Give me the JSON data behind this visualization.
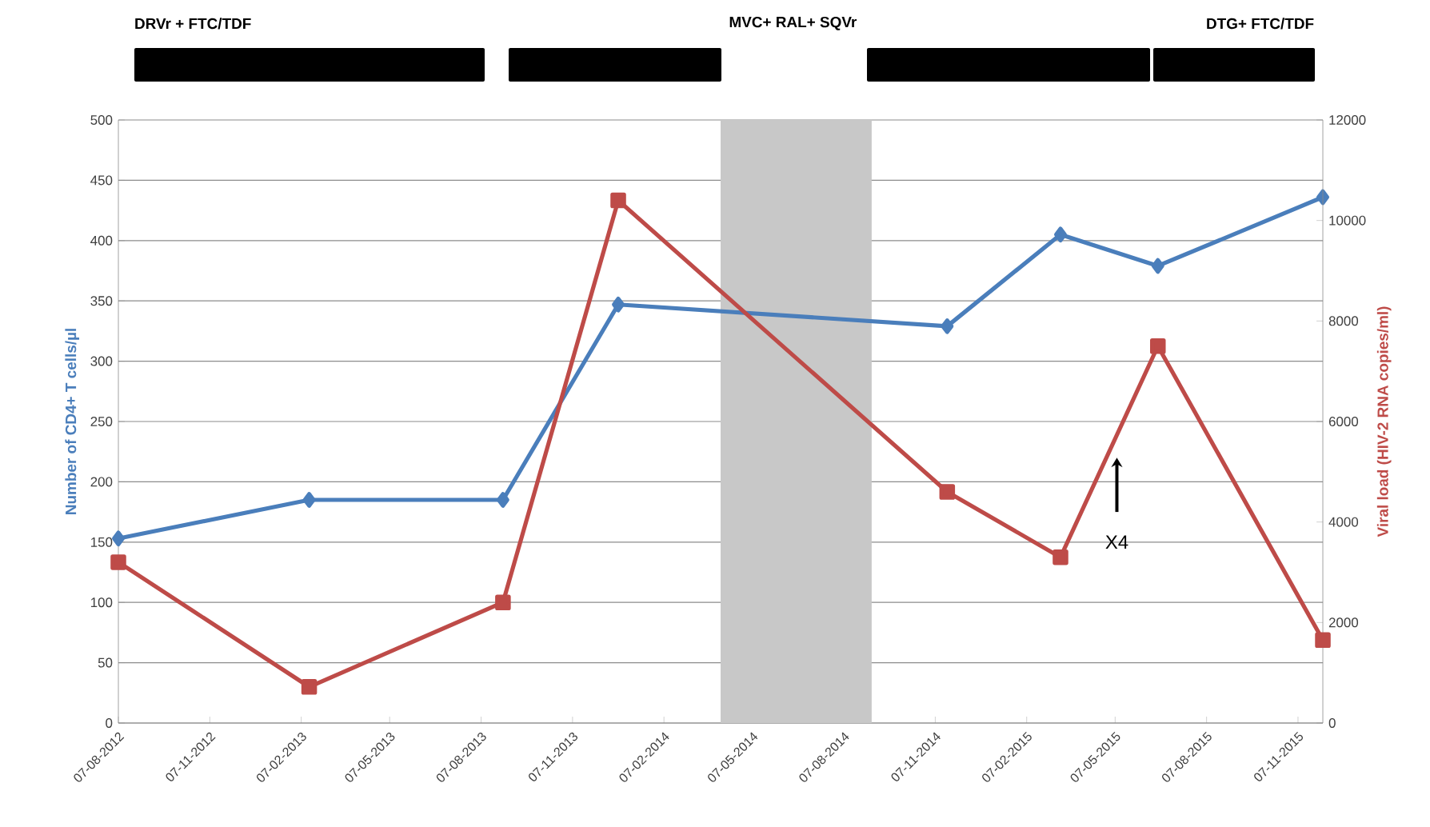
{
  "chart_data": {
    "type": "line",
    "ylabel": "Number of CD4+ T cells/µl",
    "y2label": "Viral load (HIV-2 RNA copies/ml)",
    "x": [
      "2012-08-07",
      "2013-02-15",
      "2013-08-29",
      "2013-12-23",
      "2014-11-19",
      "2015-03-13",
      "2015-06-19",
      "2015-12-02"
    ],
    "series": [
      {
        "color": "#4a7ebb",
        "marker": "diamond",
        "values": [
          153,
          185,
          185,
          347,
          329,
          405,
          379,
          436
        ]
      },
      {
        "color": "#be4b48",
        "marker": "square",
        "axis": "y2",
        "values": [
          3200,
          720,
          2400,
          10400,
          4600,
          3300,
          7500,
          1650
        ]
      }
    ],
    "xlim": [
      "2012-08-07",
      "2015-12-02"
    ],
    "xticks": [
      {
        "value": "2012-08-07",
        "label": "07-08-2012"
      },
      {
        "value": "2012-11-07",
        "label": "07-11-2012"
      },
      {
        "value": "2013-02-07",
        "label": "07-02-2013"
      },
      {
        "value": "2013-05-07",
        "label": "07-05-2013"
      },
      {
        "value": "2013-08-07",
        "label": "07-08-2013"
      },
      {
        "value": "2013-11-07",
        "label": "07-11-2013"
      },
      {
        "value": "2014-02-07",
        "label": "07-02-2014"
      },
      {
        "value": "2014-05-07",
        "label": "07-05-2014"
      },
      {
        "value": "2014-08-07",
        "label": "07-08-2014"
      },
      {
        "value": "2014-11-07",
        "label": "07-11-2014"
      },
      {
        "value": "2015-02-07",
        "label": "07-02-2015"
      },
      {
        "value": "2015-05-07",
        "label": "07-05-2015"
      },
      {
        "value": "2015-08-07",
        "label": "07-08-2015"
      },
      {
        "value": "2015-11-07",
        "label": "07-11-2015"
      }
    ],
    "ylim": [
      0,
      500
    ],
    "yticks": [
      0,
      50,
      100,
      150,
      200,
      250,
      300,
      350,
      400,
      450,
      500
    ],
    "y2lim": [
      0,
      12000
    ],
    "y2ticks": [
      0,
      2000,
      4000,
      6000,
      8000,
      10000,
      12000
    ],
    "bands": [
      {
        "axis": "x",
        "from": "2014-04-05",
        "to": "2014-09-04",
        "color": "#c8c8c8"
      }
    ],
    "annotations": [
      "DRVr + FTC/TDF",
      "MVC+ RAL+ SQVr",
      "DTG+ FTC/TDF",
      "X4"
    ],
    "grid": "y",
    "line_style": "solid"
  }
}
